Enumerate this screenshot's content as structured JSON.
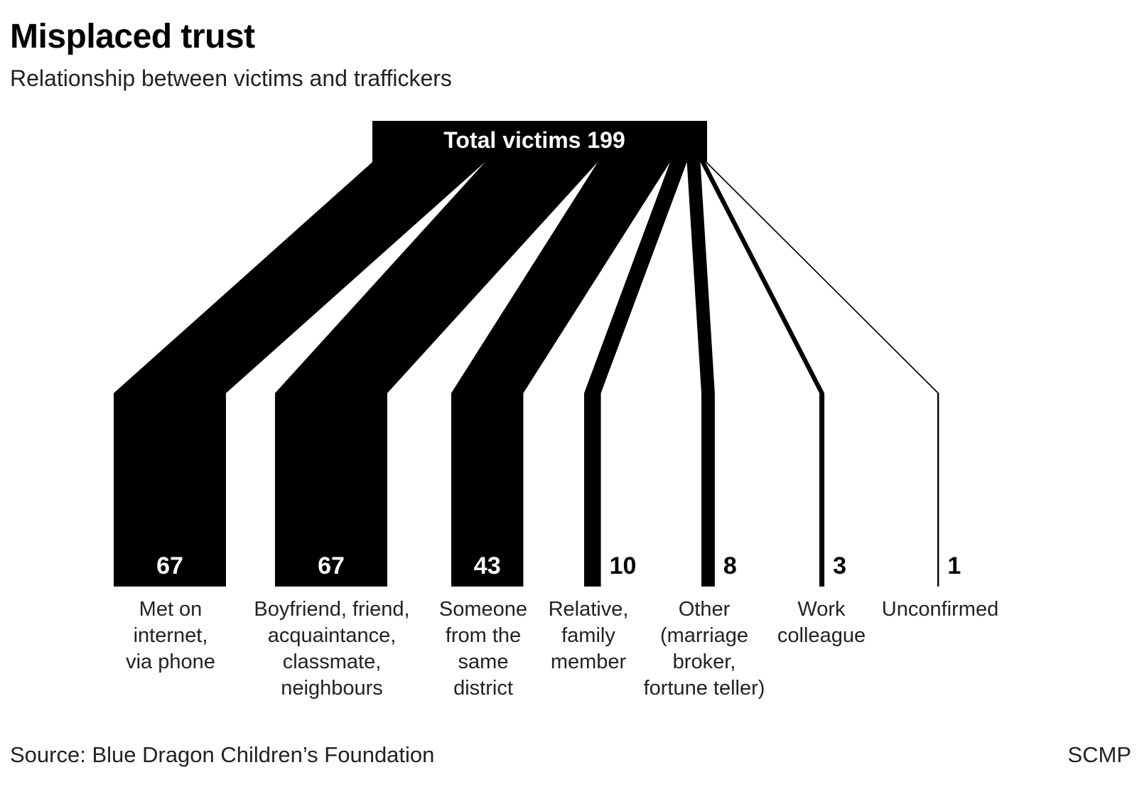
{
  "title": "Misplaced trust",
  "subtitle": "Relationship between victims and traffickers",
  "source": "Source: Blue Dragon Children’s Foundation",
  "brand": "SCMP",
  "chart_data": {
    "type": "sankey",
    "source_node": {
      "label": "Total victims 199",
      "value": 199
    },
    "categories": [
      "Met on internet, via phone",
      "Boyfriend, friend, acquaintance, classmate, neighbours",
      "Someone from the same district",
      "Relative, family member",
      "Other (marriage broker, fortune teller)",
      "Work colleague",
      "Unconfirmed"
    ],
    "category_lines": [
      [
        "Met on",
        "internet,",
        "via phone"
      ],
      [
        "Boyfriend, friend,",
        "acquaintance,",
        "classmate,",
        "neighbours"
      ],
      [
        "Someone",
        "from the",
        "same",
        "district"
      ],
      [
        "Relative,",
        "family",
        "member"
      ],
      [
        "Other",
        "(marriage",
        "broker,",
        "fortune teller)"
      ],
      [
        "Work",
        "colleague"
      ],
      [
        "Unconfirmed"
      ]
    ],
    "values": [
      67,
      67,
      43,
      10,
      8,
      3,
      1
    ],
    "value_labels": [
      "67",
      "67",
      "43",
      "10",
      "8",
      "3",
      "1"
    ],
    "color": "#000000"
  }
}
